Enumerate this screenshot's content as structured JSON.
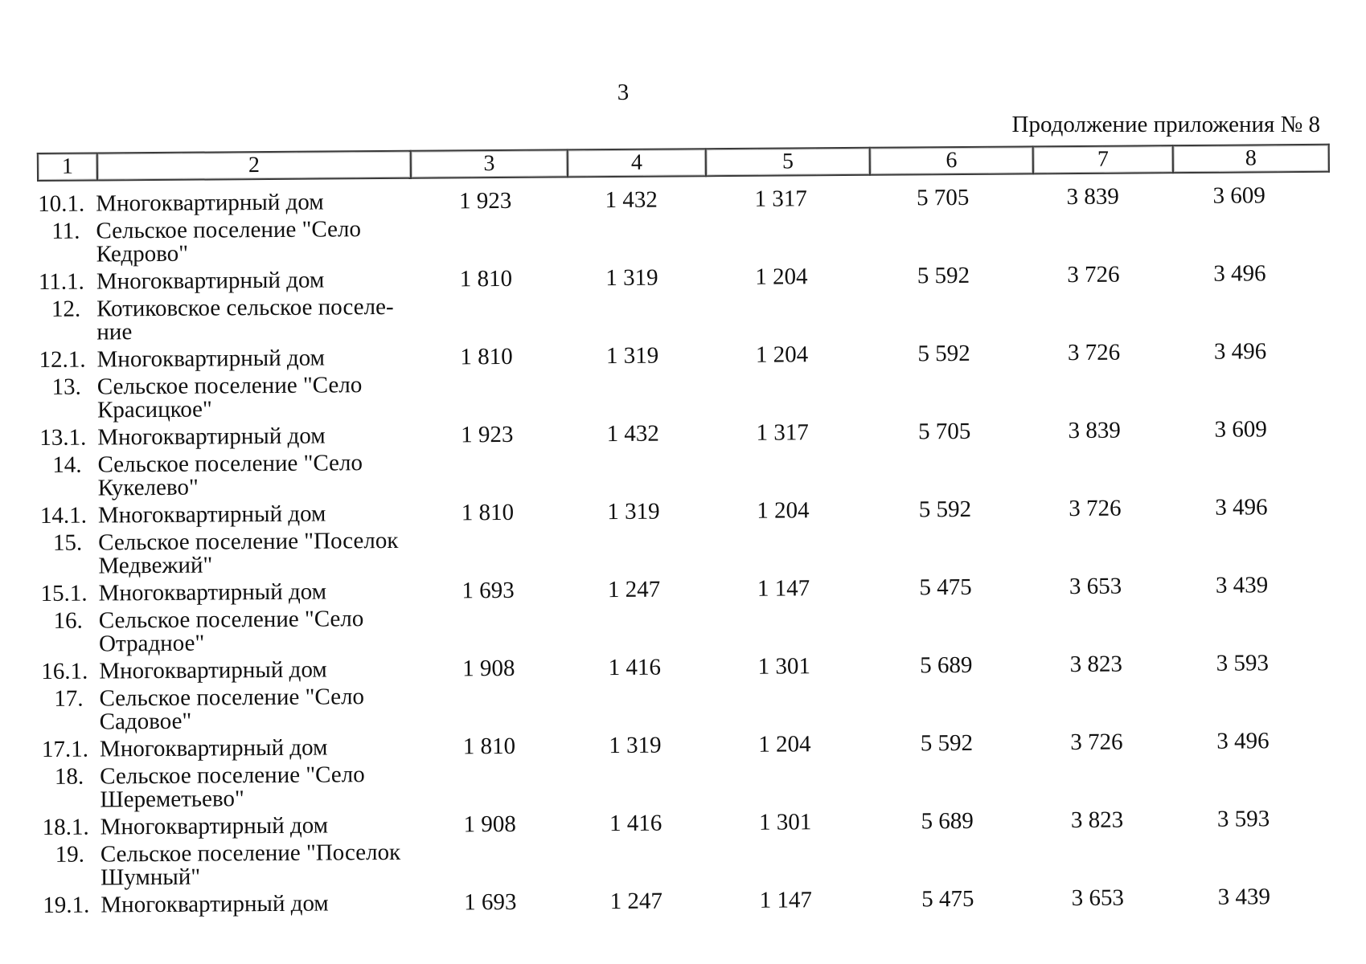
{
  "page": {
    "number": "3",
    "continuation_note": "Продолжение приложения № 8"
  },
  "table": {
    "column_numbers": [
      "1",
      "2",
      "3",
      "4",
      "5",
      "6",
      "7",
      "8"
    ],
    "rows": [
      {
        "num": "10.1.",
        "name_lines": [
          "Многоквартирный дом"
        ],
        "values": [
          "1 923",
          "1 432",
          "1 317",
          "5 705",
          "3 839",
          "3 609"
        ]
      },
      {
        "num": "11.",
        "name_lines": [
          "Сельское поселение \"Село",
          "Кедрово\""
        ],
        "values": []
      },
      {
        "num": "11.1.",
        "name_lines": [
          "Многоквартирный дом"
        ],
        "values": [
          "1 810",
          "1 319",
          "1 204",
          "5 592",
          "3 726",
          "3 496"
        ]
      },
      {
        "num": "12.",
        "name_lines": [
          "Котиковское сельское поселе-",
          "ние"
        ],
        "values": []
      },
      {
        "num": "12.1.",
        "name_lines": [
          "Многоквартирный дом"
        ],
        "values": [
          "1 810",
          "1 319",
          "1 204",
          "5 592",
          "3 726",
          "3 496"
        ]
      },
      {
        "num": "13.",
        "name_lines": [
          "Сельское поселение \"Село",
          "Красицкое\""
        ],
        "values": []
      },
      {
        "num": "13.1.",
        "name_lines": [
          "Многоквартирный дом"
        ],
        "values": [
          "1 923",
          "1 432",
          "1 317",
          "5 705",
          "3 839",
          "3 609"
        ]
      },
      {
        "num": "14.",
        "name_lines": [
          "Сельское поселение \"Село",
          "Кукелево\""
        ],
        "values": []
      },
      {
        "num": "14.1.",
        "name_lines": [
          "Многоквартирный дом"
        ],
        "values": [
          "1 810",
          "1 319",
          "1 204",
          "5 592",
          "3 726",
          "3 496"
        ]
      },
      {
        "num": "15.",
        "name_lines": [
          "Сельское поселение \"Поселок",
          "Медвежий\""
        ],
        "values": []
      },
      {
        "num": "15.1.",
        "name_lines": [
          "Многоквартирный дом"
        ],
        "values": [
          "1 693",
          "1 247",
          "1 147",
          "5 475",
          "3 653",
          "3 439"
        ]
      },
      {
        "num": "16.",
        "name_lines": [
          "Сельское поселение \"Село",
          "Отрадное\""
        ],
        "values": []
      },
      {
        "num": "16.1.",
        "name_lines": [
          "Многоквартирный дом"
        ],
        "values": [
          "1 908",
          "1 416",
          "1 301",
          "5 689",
          "3 823",
          "3 593"
        ]
      },
      {
        "num": "17.",
        "name_lines": [
          "Сельское поселение \"Село",
          "Садовое\""
        ],
        "values": []
      },
      {
        "num": "17.1.",
        "name_lines": [
          "Многоквартирный дом"
        ],
        "values": [
          "1 810",
          "1 319",
          "1 204",
          "5 592",
          "3 726",
          "3 496"
        ]
      },
      {
        "num": "18.",
        "name_lines": [
          "Сельское поселение \"Село",
          "Шереметьево\""
        ],
        "values": []
      },
      {
        "num": "18.1.",
        "name_lines": [
          "Многоквартирный дом"
        ],
        "values": [
          "1 908",
          "1 416",
          "1 301",
          "5 689",
          "3 823",
          "3 593"
        ]
      },
      {
        "num": "19.",
        "name_lines": [
          "Сельское поселение \"Поселок",
          "Шумный\""
        ],
        "values": []
      },
      {
        "num": "19.1.",
        "name_lines": [
          "Многоквартирный дом"
        ],
        "values": [
          "1 693",
          "1 247",
          "1 147",
          "5 475",
          "3 653",
          "3 439"
        ]
      }
    ]
  }
}
